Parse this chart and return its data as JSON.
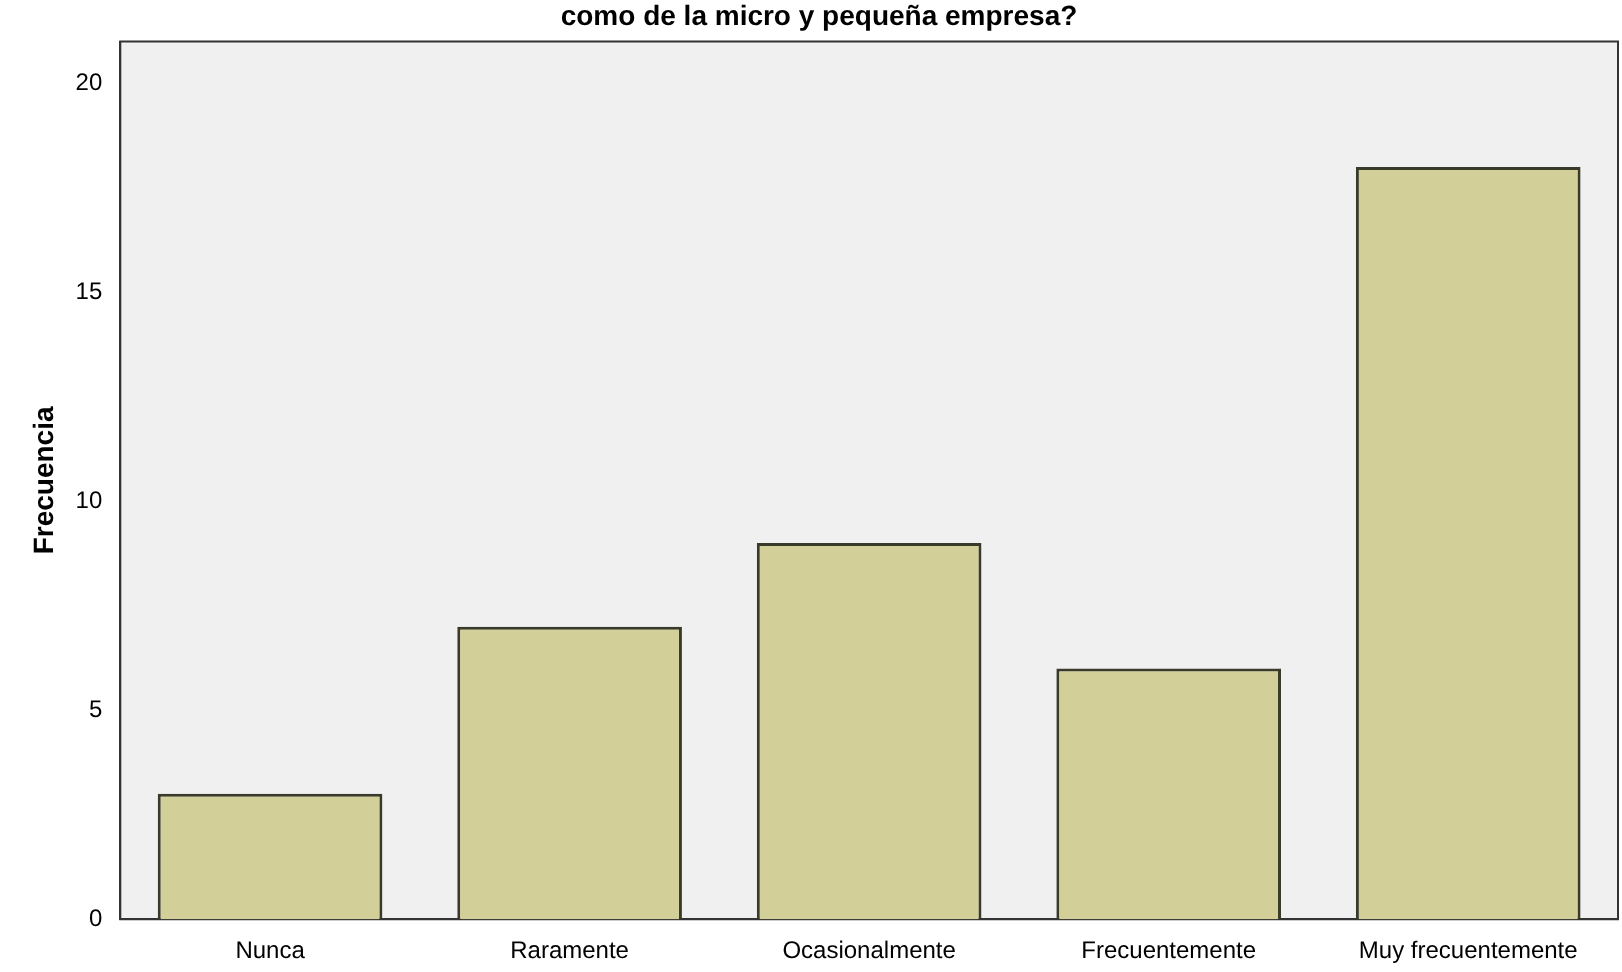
{
  "chart_data": {
    "type": "bar",
    "title": "como de la micro y pequeña empresa?",
    "ylabel": "Frecuencia",
    "categories": [
      "Nunca",
      "Raramente",
      "Ocasionalmente",
      "Frecuentemente",
      "Muy frecuentemente"
    ],
    "values": [
      3,
      7,
      9,
      6,
      18
    ],
    "color": "#d3cf98",
    "ylim": [
      0,
      21
    ],
    "yticks": [
      0,
      5,
      10,
      15,
      20
    ],
    "grid": false,
    "legend": false
  }
}
